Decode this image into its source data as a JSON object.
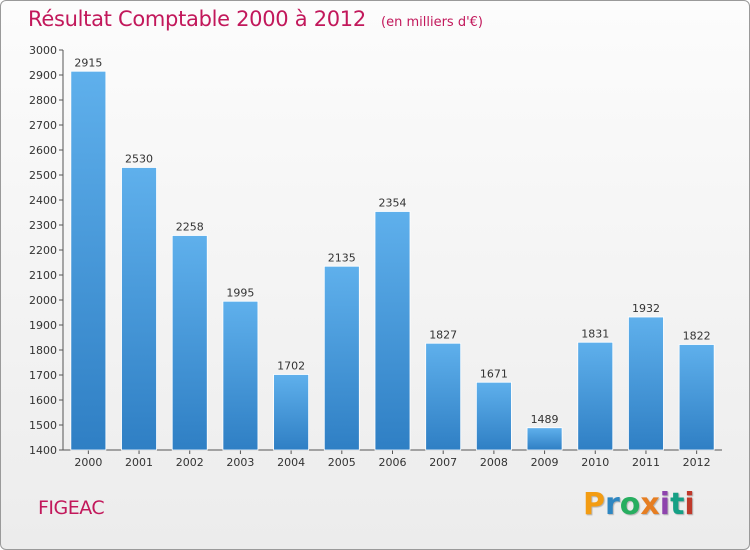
{
  "chart_data": {
    "type": "bar",
    "title": "Résultat Comptable 2000 à 2012",
    "subtitle": "(en milliers d'€)",
    "categories": [
      "2000",
      "2001",
      "2002",
      "2003",
      "2004",
      "2005",
      "2006",
      "2007",
      "2008",
      "2009",
      "2010",
      "2011",
      "2012"
    ],
    "values": [
      2915,
      2530,
      2258,
      1995,
      1702,
      2135,
      2354,
      1827,
      1671,
      1489,
      1831,
      1932,
      1822
    ],
    "ylim": [
      1400,
      3000
    ],
    "yticks": [
      1400,
      1500,
      1600,
      1700,
      1800,
      1900,
      2000,
      2100,
      2200,
      2300,
      2400,
      2500,
      2600,
      2700,
      2800,
      2900,
      3000
    ],
    "xlabel": "",
    "ylabel": "",
    "grid": false,
    "bar_color": "#3f97d9",
    "label_color": "#333333"
  },
  "location": "FIGEAC",
  "brand": {
    "letters": [
      "P",
      "r",
      "o",
      "x",
      "i",
      "t",
      "i"
    ],
    "colors": [
      "#f39c12",
      "#2e86c1",
      "#27ae60",
      "#e67e22",
      "#8e44ad",
      "#16a085",
      "#c0392b"
    ]
  },
  "colors": {
    "title": "#c2185b"
  }
}
